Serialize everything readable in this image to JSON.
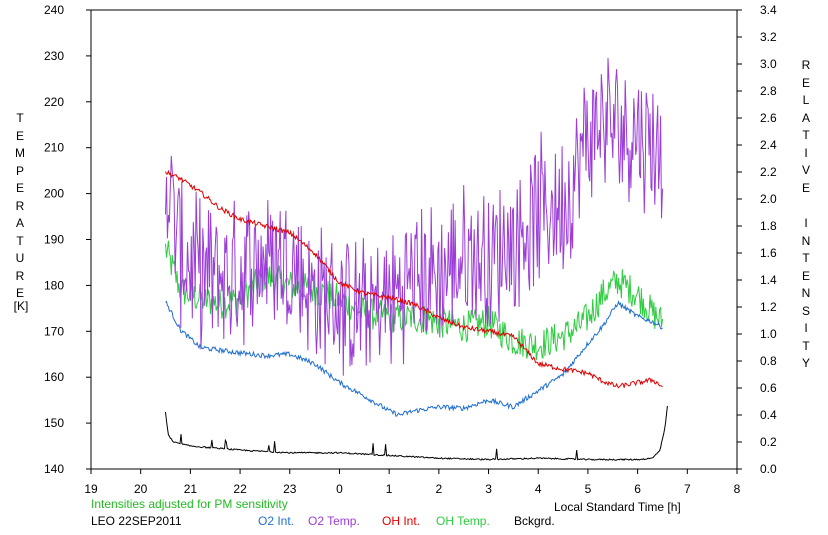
{
  "chart_data": {
    "type": "line",
    "title": "",
    "station": "LEO 22SEP2011",
    "note": "Intensities adjusted for PM sensitivity",
    "xlabel": "Local Standard Time [h]",
    "ylabel_left": "TEMPERATURE",
    "ylabel_left_unit": "[K]",
    "ylabel_right": "RELATIVE INTENSITY",
    "xlim": [
      19,
      32
    ],
    "xticks": [
      19,
      20,
      21,
      22,
      23,
      24,
      25,
      26,
      27,
      28,
      29,
      30,
      31,
      32
    ],
    "xtick_labels": [
      "19",
      "20",
      "21",
      "22",
      "23",
      "0",
      "1",
      "2",
      "3",
      "4",
      "5",
      "6",
      "7",
      "8"
    ],
    "ylim_left": [
      140,
      240
    ],
    "yticks_left": [
      "140",
      "150",
      "160",
      "170",
      "180",
      "190",
      "200",
      "210",
      "220",
      "230",
      "240"
    ],
    "ylim_right": [
      0.0,
      3.4
    ],
    "yticks_right": [
      "0.0",
      "0.2",
      "0.4",
      "0.6",
      "0.8",
      "1.0",
      "1.2",
      "1.4",
      "1.6",
      "1.8",
      "2.0",
      "2.2",
      "2.4",
      "2.6",
      "2.8",
      "3.0",
      "3.2",
      "3.4"
    ],
    "grid": false,
    "legend_placement": "bottom",
    "series": [
      {
        "name": "O2 Int.",
        "axis": "right",
        "color": "#1f6fd0",
        "x": [
          20.5,
          20.8,
          21.2,
          21.6,
          22.0,
          22.5,
          23.0,
          23.5,
          24.0,
          24.5,
          25.0,
          25.2,
          25.5,
          26.0,
          26.5,
          27.0,
          27.5,
          28.0,
          28.5,
          29.0,
          29.3,
          29.6,
          30.0,
          30.3,
          30.5
        ],
        "values": [
          1.24,
          1.03,
          0.9,
          0.88,
          0.86,
          0.84,
          0.85,
          0.78,
          0.64,
          0.54,
          0.43,
          0.4,
          0.43,
          0.46,
          0.45,
          0.51,
          0.46,
          0.58,
          0.7,
          0.93,
          1.06,
          1.23,
          1.13,
          1.09,
          1.05
        ],
        "noise": 0.018
      },
      {
        "name": "O2 Temp.",
        "axis": "left",
        "color": "#9b3dd6",
        "x": [
          20.5,
          20.8,
          21.2,
          21.6,
          22.0,
          22.5,
          23.0,
          23.5,
          24.0,
          24.5,
          25.0,
          25.5,
          26.0,
          26.5,
          27.0,
          27.5,
          28.0,
          28.5,
          28.8,
          29.0,
          29.3,
          29.6,
          30.0,
          30.3,
          30.5
        ],
        "values": [
          205,
          187,
          183,
          182,
          183,
          186,
          185,
          178,
          176,
          174,
          177,
          182,
          182,
          186,
          186,
          190,
          196,
          198,
          205,
          213,
          216,
          214,
          214,
          211,
          208
        ],
        "noise": 11
      },
      {
        "name": "OH Int.",
        "axis": "right",
        "color": "#e00000",
        "x": [
          20.5,
          20.8,
          21.2,
          21.6,
          22.0,
          22.5,
          23.0,
          23.5,
          24.0,
          24.5,
          25.0,
          25.5,
          26.0,
          26.5,
          27.0,
          27.5,
          28.0,
          28.5,
          29.0,
          29.3,
          29.6,
          30.0,
          30.3,
          30.5
        ],
        "values": [
          2.2,
          2.15,
          2.05,
          1.93,
          1.85,
          1.8,
          1.75,
          1.6,
          1.38,
          1.3,
          1.27,
          1.22,
          1.12,
          1.05,
          1.02,
          0.98,
          0.78,
          0.74,
          0.71,
          0.65,
          0.61,
          0.64,
          0.66,
          0.61
        ],
        "noise": 0.018
      },
      {
        "name": "OH Temp.",
        "axis": "left",
        "color": "#2ecc40",
        "x": [
          20.5,
          20.8,
          21.2,
          21.6,
          22.0,
          22.5,
          23.0,
          23.5,
          24.0,
          24.5,
          25.0,
          25.5,
          26.0,
          26.5,
          27.0,
          27.5,
          28.0,
          28.5,
          28.8,
          29.0,
          29.3,
          29.6,
          30.0,
          30.3,
          30.5
        ],
        "values": [
          188,
          179,
          177,
          176,
          177,
          182,
          180,
          179,
          177,
          174,
          173,
          173,
          172,
          171,
          172,
          168,
          167,
          169,
          171,
          173,
          178,
          181,
          178,
          174,
          172
        ],
        "noise": 3.5
      },
      {
        "name": "Bckgrd.",
        "axis": "right",
        "color": "#000000",
        "x": [
          20.5,
          20.55,
          20.65,
          21.0,
          22.0,
          23.0,
          24.0,
          25.0,
          26.0,
          27.0,
          28.0,
          29.0,
          30.0,
          30.3,
          30.45,
          30.55,
          30.6
        ],
        "values": [
          0.42,
          0.26,
          0.2,
          0.17,
          0.14,
          0.12,
          0.12,
          0.1,
          0.08,
          0.07,
          0.08,
          0.07,
          0.07,
          0.08,
          0.14,
          0.3,
          0.47
        ],
        "noise": 0.005
      }
    ]
  }
}
